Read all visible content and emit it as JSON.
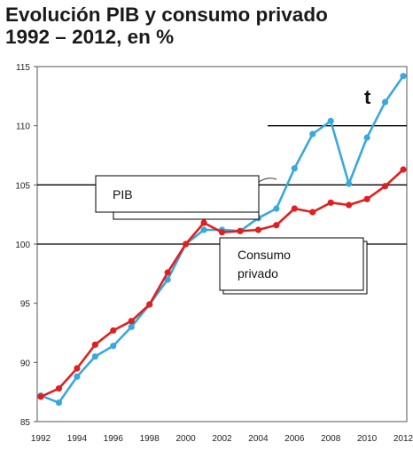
{
  "title_line1": "Evolución PIB y consumo privado",
  "title_line2": "1992 – 2012, en %",
  "chart_data": {
    "type": "line",
    "x": [
      1992,
      1993,
      1994,
      1995,
      1996,
      1997,
      1998,
      1999,
      2000,
      2001,
      2002,
      2003,
      2004,
      2005,
      2006,
      2007,
      2008,
      2009,
      2010,
      2011,
      2012
    ],
    "xticks": [
      "1992",
      "1994",
      "1996",
      "1998",
      "2000",
      "2002",
      "2004",
      "2006",
      "2008",
      "2010",
      "2012"
    ],
    "yticks": [
      "85",
      "90",
      "95",
      "100",
      "105",
      "110",
      "115"
    ],
    "ylim": [
      85,
      115
    ],
    "grid_lines": [
      100,
      105,
      110
    ],
    "colors": {
      "PIB": "#3aa8dc",
      "Consumo": "#e02020",
      "grid": "#000000"
    },
    "series": [
      {
        "name": "PIB",
        "values": [
          87.2,
          86.6,
          88.8,
          90.5,
          91.4,
          93.0,
          94.9,
          97.0,
          100.0,
          101.2,
          101.2,
          101.1,
          102.2,
          103.0,
          106.4,
          109.3,
          110.4,
          105.1,
          109.0,
          112.0,
          114.2
        ]
      },
      {
        "name": "Consumo privado",
        "values": [
          87.1,
          87.8,
          89.5,
          91.5,
          92.7,
          93.5,
          94.9,
          97.6,
          100.0,
          101.8,
          101.0,
          101.1,
          101.2,
          101.6,
          103.0,
          102.7,
          103.5,
          103.3,
          103.8,
          104.9,
          106.3
        ]
      }
    ],
    "annotations": {
      "pib_label": "PIB",
      "consumo_line1": "Consumo",
      "consumo_line2": "privado",
      "marker": "t"
    }
  }
}
